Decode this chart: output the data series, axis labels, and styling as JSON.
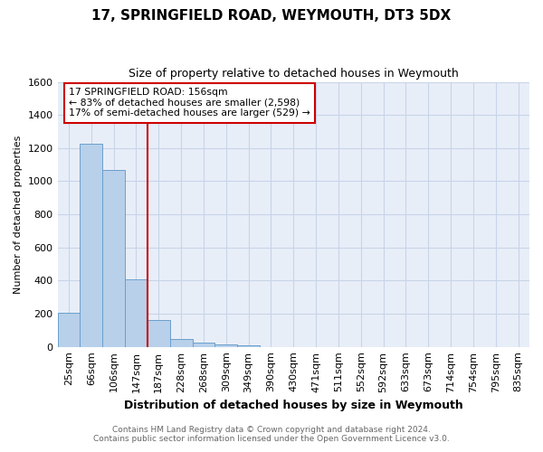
{
  "title": "17, SPRINGFIELD ROAD, WEYMOUTH, DT3 5DX",
  "subtitle": "Size of property relative to detached houses in Weymouth",
  "xlabel": "Distribution of detached houses by size in Weymouth",
  "ylabel": "Number of detached properties",
  "bar_labels": [
    "25sqm",
    "66sqm",
    "106sqm",
    "147sqm",
    "187sqm",
    "228sqm",
    "268sqm",
    "309sqm",
    "349sqm",
    "390sqm",
    "430sqm",
    "471sqm",
    "511sqm",
    "552sqm",
    "592sqm",
    "633sqm",
    "673sqm",
    "714sqm",
    "754sqm",
    "795sqm",
    "835sqm"
  ],
  "bar_values": [
    205,
    1225,
    1070,
    410,
    160,
    50,
    28,
    15,
    10,
    0,
    0,
    0,
    0,
    0,
    0,
    0,
    0,
    0,
    0,
    0,
    0
  ],
  "bar_color": "#b8d0ea",
  "bar_edge_color": "#6aa0cc",
  "ylim": [
    0,
    1600
  ],
  "yticks": [
    0,
    200,
    400,
    600,
    800,
    1000,
    1200,
    1400,
    1600
  ],
  "marker_bar_index": 3,
  "marker_label_line1": "17 SPRINGFIELD ROAD: 156sqm",
  "marker_label_line2": "← 83% of detached houses are smaller (2,598)",
  "marker_label_line3": "17% of semi-detached houses are larger (529) →",
  "marker_color": "#cc0000",
  "grid_color": "#c8d4e8",
  "bg_color": "#e8eef8",
  "footer_line1": "Contains HM Land Registry data © Crown copyright and database right 2024.",
  "footer_line2": "Contains public sector information licensed under the Open Government Licence v3.0."
}
